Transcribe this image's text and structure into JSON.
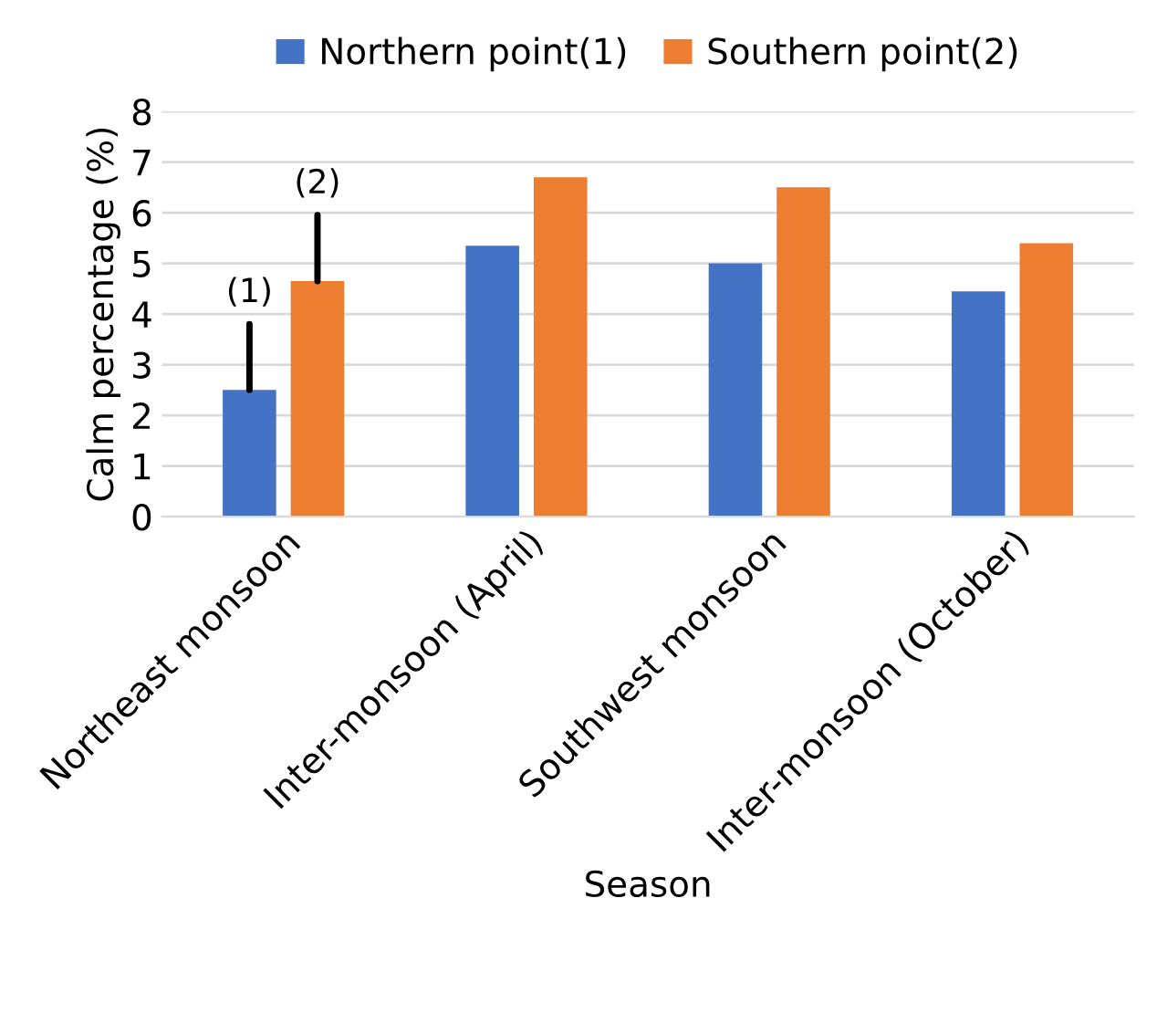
{
  "chart_data": {
    "type": "bar",
    "xlabel": "Season",
    "ylabel": "Calm percentage (%)",
    "categories": [
      "Northeast monsoon",
      "Inter-monsoon (April)",
      "Southwest monsoon",
      "Inter-monsoon (October)"
    ],
    "series": [
      {
        "name": "Northern point(1)",
        "color": "#4472c4",
        "values": [
          2.5,
          5.35,
          5.0,
          4.45
        ]
      },
      {
        "name": "Southern point(2)",
        "color": "#ed7d31",
        "values": [
          4.65,
          6.7,
          6.5,
          5.4
        ]
      }
    ],
    "ylim": [
      0,
      8
    ],
    "yticks": [
      0,
      1,
      2,
      3,
      4,
      5,
      6,
      7,
      8
    ],
    "grid": "y",
    "legend": "top",
    "annotations": [
      {
        "text": "(1)",
        "y": 2.5
      },
      {
        "text": "(2)",
        "y": 4.65
      }
    ]
  }
}
